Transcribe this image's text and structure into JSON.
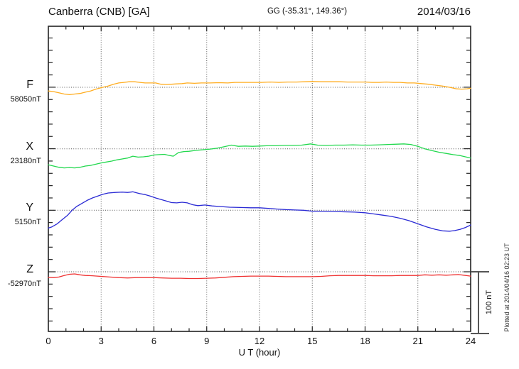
{
  "header": {
    "title": "Canberra (CNB)  [GA]",
    "subtitle": "GG (-35.31°, 149.36°)",
    "date": "2014/03/16"
  },
  "xaxis": {
    "label": "U T (hour)",
    "ticks": [
      0,
      3,
      6,
      9,
      12,
      15,
      18,
      21,
      24
    ]
  },
  "scalebar": {
    "label": "100 nT"
  },
  "footer": {
    "plotted_at": "Plotted at 2014/04/16 02:23 UT"
  },
  "chart_data": {
    "type": "line",
    "title": "Canberra (CNB) [GA] magnetogram, 2014/03/16",
    "xlabel": "U T (hour)",
    "xlim": [
      0,
      24
    ],
    "x_ticks": [
      0,
      3,
      6,
      9,
      12,
      15,
      18,
      21,
      24
    ],
    "grid": "dotted vertical lines every 3 h; dotted horizontal line at each trace baseline",
    "legend_position": "left margin, one colored letter + baseline value per trace",
    "y_scale_nT_per_division": 100,
    "points_format": "[UT hour, offset in nT from trace baseline]",
    "series": [
      {
        "name": "F",
        "baseline": "58050nT",
        "color": "#FFAD20",
        "points": [
          [
            0,
            -6
          ],
          [
            0.3,
            -7
          ],
          [
            0.6,
            -9
          ],
          [
            0.9,
            -11
          ],
          [
            1.2,
            -12
          ],
          [
            1.5,
            -11
          ],
          [
            1.8,
            -10
          ],
          [
            2.1,
            -8
          ],
          [
            2.4,
            -6
          ],
          [
            2.7,
            -3
          ],
          [
            3.1,
            0
          ],
          [
            3.4,
            2
          ],
          [
            3.7,
            5
          ],
          [
            4.0,
            7
          ],
          [
            4.3,
            8
          ],
          [
            4.6,
            9
          ],
          [
            4.9,
            9
          ],
          [
            5.2,
            8
          ],
          [
            5.5,
            7
          ],
          [
            5.8,
            7
          ],
          [
            6.1,
            7
          ],
          [
            6.4,
            5
          ],
          [
            6.7,
            4.5
          ],
          [
            7.0,
            5
          ],
          [
            7.3,
            5.5
          ],
          [
            7.6,
            6
          ],
          [
            7.9,
            7
          ],
          [
            8.3,
            6.5
          ],
          [
            8.7,
            7
          ],
          [
            9.2,
            7
          ],
          [
            9.7,
            7.5
          ],
          [
            10.2,
            7
          ],
          [
            10.6,
            8
          ],
          [
            11.1,
            8
          ],
          [
            11.6,
            8
          ],
          [
            12.1,
            8
          ],
          [
            12.6,
            8.5
          ],
          [
            13.1,
            8
          ],
          [
            13.6,
            8.5
          ],
          [
            14.1,
            8.5
          ],
          [
            14.6,
            9
          ],
          [
            15.0,
            9.5
          ],
          [
            15.5,
            9
          ],
          [
            16.0,
            9
          ],
          [
            16.5,
            9
          ],
          [
            17.0,
            8.5
          ],
          [
            17.5,
            8.5
          ],
          [
            18.0,
            8.5
          ],
          [
            18.4,
            8
          ],
          [
            18.8,
            8
          ],
          [
            19.2,
            8.5
          ],
          [
            19.6,
            8
          ],
          [
            20.0,
            8
          ],
          [
            20.4,
            7
          ],
          [
            20.8,
            7
          ],
          [
            21.2,
            6
          ],
          [
            21.6,
            5
          ],
          [
            22.0,
            3.5
          ],
          [
            22.4,
            2
          ],
          [
            22.8,
            0
          ],
          [
            23.2,
            -2.5
          ],
          [
            23.5,
            -3
          ],
          [
            23.8,
            -2.5
          ],
          [
            24,
            -1.5
          ]
        ]
      },
      {
        "name": "X",
        "baseline": "23180nT",
        "color": "#22D84E",
        "points": [
          [
            0,
            -26
          ],
          [
            0.3,
            -28
          ],
          [
            0.6,
            -30
          ],
          [
            0.9,
            -31
          ],
          [
            1.2,
            -30.5
          ],
          [
            1.5,
            -31
          ],
          [
            1.8,
            -30
          ],
          [
            2.1,
            -28
          ],
          [
            2.4,
            -27
          ],
          [
            2.7,
            -25
          ],
          [
            3.0,
            -23
          ],
          [
            3.3,
            -21.5
          ],
          [
            3.6,
            -20
          ],
          [
            3.9,
            -18
          ],
          [
            4.2,
            -16.5
          ],
          [
            4.5,
            -15
          ],
          [
            4.8,
            -12
          ],
          [
            5.1,
            -13.5
          ],
          [
            5.4,
            -13
          ],
          [
            5.7,
            -12
          ],
          [
            6.0,
            -10
          ],
          [
            6.3,
            -9.5
          ],
          [
            6.6,
            -9
          ],
          [
            6.9,
            -11
          ],
          [
            7.1,
            -12
          ],
          [
            7.4,
            -6
          ],
          [
            7.7,
            -4.5
          ],
          [
            8.0,
            -4
          ],
          [
            8.4,
            -2.5
          ],
          [
            8.8,
            -1.5
          ],
          [
            9.2,
            -0.5
          ],
          [
            9.6,
            1
          ],
          [
            10.0,
            3.5
          ],
          [
            10.4,
            6
          ],
          [
            10.8,
            4
          ],
          [
            11.2,
            4.5
          ],
          [
            11.6,
            4
          ],
          [
            12.0,
            4.5
          ],
          [
            12.4,
            5
          ],
          [
            12.9,
            5
          ],
          [
            13.4,
            5.5
          ],
          [
            13.9,
            5.5
          ],
          [
            14.4,
            6
          ],
          [
            14.9,
            8
          ],
          [
            15.3,
            6
          ],
          [
            15.8,
            5.5
          ],
          [
            16.3,
            6
          ],
          [
            16.8,
            6
          ],
          [
            17.3,
            6.5
          ],
          [
            17.8,
            6
          ],
          [
            18.3,
            6
          ],
          [
            18.8,
            6.5
          ],
          [
            19.3,
            7
          ],
          [
            19.8,
            7.5
          ],
          [
            20.2,
            8
          ],
          [
            20.6,
            7
          ],
          [
            21.0,
            4
          ],
          [
            21.4,
            0
          ],
          [
            21.8,
            -3
          ],
          [
            22.2,
            -5.5
          ],
          [
            22.6,
            -7.5
          ],
          [
            23.0,
            -9.5
          ],
          [
            23.4,
            -11
          ],
          [
            23.7,
            -13
          ],
          [
            24,
            -15
          ]
        ]
      },
      {
        "name": "Y",
        "baseline": "5150nT",
        "color": "#2A2AD4",
        "points": [
          [
            0,
            -29
          ],
          [
            0.2,
            -27
          ],
          [
            0.5,
            -22
          ],
          [
            0.8,
            -15
          ],
          [
            1.1,
            -8
          ],
          [
            1.35,
            0
          ],
          [
            1.6,
            6
          ],
          [
            1.9,
            11
          ],
          [
            2.2,
            16
          ],
          [
            2.5,
            20
          ],
          [
            2.8,
            23
          ],
          [
            3.1,
            26
          ],
          [
            3.4,
            28
          ],
          [
            3.8,
            29
          ],
          [
            4.2,
            29.5
          ],
          [
            4.5,
            29
          ],
          [
            4.8,
            30
          ],
          [
            5.0,
            28.5
          ],
          [
            5.2,
            27
          ],
          [
            5.5,
            25.5
          ],
          [
            5.8,
            23
          ],
          [
            6.1,
            20
          ],
          [
            6.4,
            17.5
          ],
          [
            6.7,
            15
          ],
          [
            7.0,
            12.5
          ],
          [
            7.3,
            12
          ],
          [
            7.6,
            13
          ],
          [
            7.9,
            12
          ],
          [
            8.2,
            9
          ],
          [
            8.5,
            7.5
          ],
          [
            8.9,
            8.5
          ],
          [
            9.3,
            7
          ],
          [
            9.8,
            6
          ],
          [
            10.3,
            5
          ],
          [
            10.9,
            4.5
          ],
          [
            11.5,
            4
          ],
          [
            12.0,
            4
          ],
          [
            12.5,
            3
          ],
          [
            13.0,
            2
          ],
          [
            13.5,
            1
          ],
          [
            14.0,
            0.5
          ],
          [
            14.5,
            0
          ],
          [
            15.0,
            -1.5
          ],
          [
            15.6,
            -1.5
          ],
          [
            16.2,
            -2
          ],
          [
            16.8,
            -2.5
          ],
          [
            17.4,
            -3
          ],
          [
            18.0,
            -4
          ],
          [
            18.5,
            -6
          ],
          [
            19.0,
            -8
          ],
          [
            19.5,
            -10
          ],
          [
            20.0,
            -13
          ],
          [
            20.5,
            -17
          ],
          [
            21.0,
            -22
          ],
          [
            21.5,
            -27
          ],
          [
            22.0,
            -31
          ],
          [
            22.4,
            -33.5
          ],
          [
            22.8,
            -34
          ],
          [
            23.1,
            -33
          ],
          [
            23.4,
            -31
          ],
          [
            23.7,
            -28
          ],
          [
            24,
            -24
          ]
        ]
      },
      {
        "name": "Z",
        "baseline": "-52970nT",
        "color": "#EF3232",
        "points": [
          [
            0,
            -9
          ],
          [
            0.3,
            -9.5
          ],
          [
            0.6,
            -8.5
          ],
          [
            0.9,
            -6
          ],
          [
            1.2,
            -4
          ],
          [
            1.5,
            -3.5
          ],
          [
            1.8,
            -5
          ],
          [
            2.1,
            -6
          ],
          [
            2.5,
            -6.5
          ],
          [
            3.0,
            -7.5
          ],
          [
            3.5,
            -8.5
          ],
          [
            4.0,
            -9.5
          ],
          [
            4.5,
            -10
          ],
          [
            5.0,
            -9.5
          ],
          [
            5.5,
            -9.5
          ],
          [
            6.0,
            -9.5
          ],
          [
            6.5,
            -10
          ],
          [
            7.0,
            -10.5
          ],
          [
            7.5,
            -10.5
          ],
          [
            8.0,
            -11
          ],
          [
            8.5,
            -11
          ],
          [
            9.0,
            -10.5
          ],
          [
            9.5,
            -10
          ],
          [
            10.0,
            -9
          ],
          [
            10.5,
            -8
          ],
          [
            11.0,
            -7.5
          ],
          [
            11.5,
            -7
          ],
          [
            12.0,
            -7
          ],
          [
            12.5,
            -7
          ],
          [
            13.0,
            -7.5
          ],
          [
            13.5,
            -8
          ],
          [
            14.0,
            -8
          ],
          [
            14.5,
            -8
          ],
          [
            15.0,
            -8
          ],
          [
            15.5,
            -7.5
          ],
          [
            16.0,
            -6.5
          ],
          [
            16.5,
            -6
          ],
          [
            17.0,
            -6
          ],
          [
            17.5,
            -6
          ],
          [
            18.0,
            -6
          ],
          [
            18.5,
            -6.5
          ],
          [
            19.0,
            -6.5
          ],
          [
            19.5,
            -6.5
          ],
          [
            20.0,
            -6
          ],
          [
            20.5,
            -6
          ],
          [
            21.0,
            -6
          ],
          [
            21.4,
            -5
          ],
          [
            21.8,
            -5.5
          ],
          [
            22.2,
            -5
          ],
          [
            22.6,
            -5.5
          ],
          [
            23.0,
            -5
          ],
          [
            23.3,
            -4.5
          ],
          [
            23.6,
            -5.5
          ],
          [
            24,
            -7
          ]
        ]
      }
    ]
  }
}
